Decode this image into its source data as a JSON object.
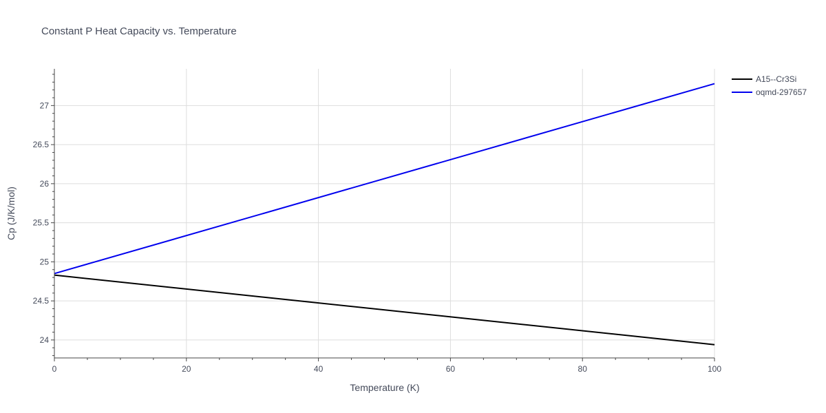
{
  "chart_data": {
    "type": "line",
    "title": "Constant P Heat Capacity vs. Temperature",
    "xlabel": "Temperature (K)",
    "ylabel": "Cp (J/K/mol)",
    "xlim": [
      0,
      100
    ],
    "ylim": [
      23.77,
      27.47
    ],
    "x_ticks": [
      0,
      20,
      40,
      60,
      80,
      100
    ],
    "y_ticks": [
      24,
      24.5,
      25,
      25.5,
      26,
      26.5,
      27
    ],
    "y_tick_labels": [
      "24",
      "24.5",
      "25",
      "25.5",
      "26",
      "26.5",
      "27"
    ],
    "grid": true,
    "legend_position": "top-right",
    "series": [
      {
        "name": "A15--Cr3Si",
        "color": "#000000",
        "x": [
          0,
          100
        ],
        "y": [
          24.83,
          23.94
        ]
      },
      {
        "name": "oqmd-297657",
        "color": "#0000ee",
        "x": [
          0,
          100
        ],
        "y": [
          24.85,
          27.28
        ]
      }
    ]
  }
}
